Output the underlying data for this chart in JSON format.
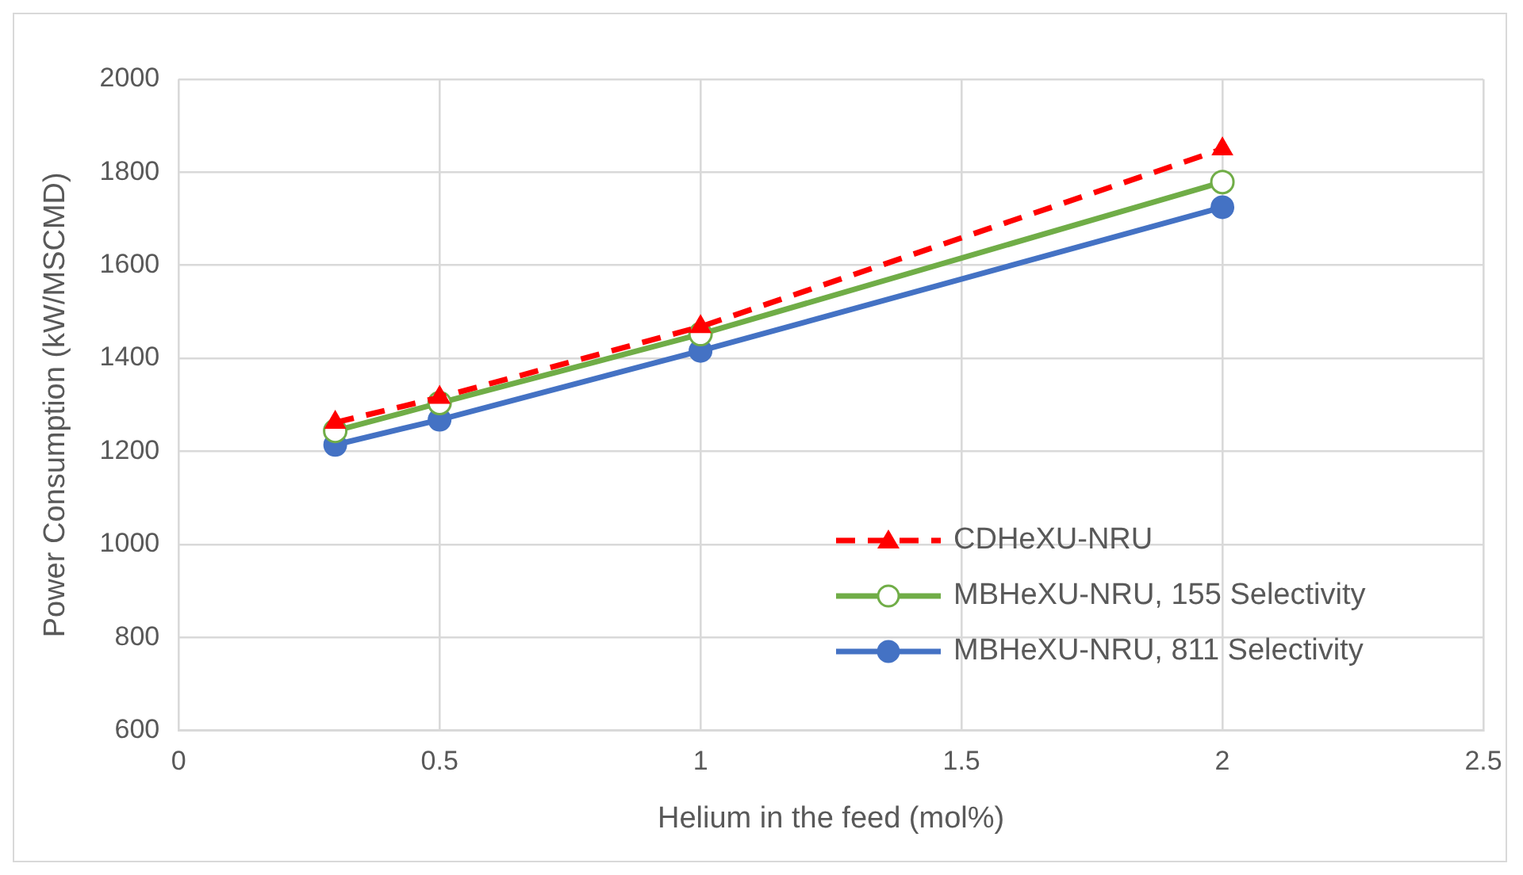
{
  "chart_data": {
    "type": "line",
    "xlabel": "Helium in the feed (mol%)",
    "ylabel": "Power Consumption (kW/MSCMD)",
    "x": [
      0.3,
      0.5,
      1,
      2
    ],
    "series": [
      {
        "name": "CDHeXU-NRU",
        "color": "#ff0000",
        "values": [
          1262,
          1316,
          1468,
          1850
        ],
        "marker": "triangle",
        "line_style": "dashed"
      },
      {
        "name": "MBHeXU-NRU, 155 Selectivity",
        "color": "#70ad47",
        "values": [
          1244,
          1304,
          1452,
          1779
        ],
        "marker": "circle",
        "line_style": "solid"
      },
      {
        "name": "MBHeXU-NRU, 811 Selectivity",
        "color": "#4472c4",
        "values": [
          1214,
          1268,
          1416,
          1725
        ],
        "marker": "circle",
        "line_style": "solid"
      }
    ],
    "xlim": [
      0,
      2.5
    ],
    "xticks": [
      0,
      0.5,
      1,
      1.5,
      2,
      2.5
    ],
    "ylim": [
      600,
      2000
    ],
    "yticks": [
      600,
      800,
      1000,
      1200,
      1400,
      1600,
      1800,
      2000
    ],
    "grid": true,
    "legend": "bottom right"
  }
}
